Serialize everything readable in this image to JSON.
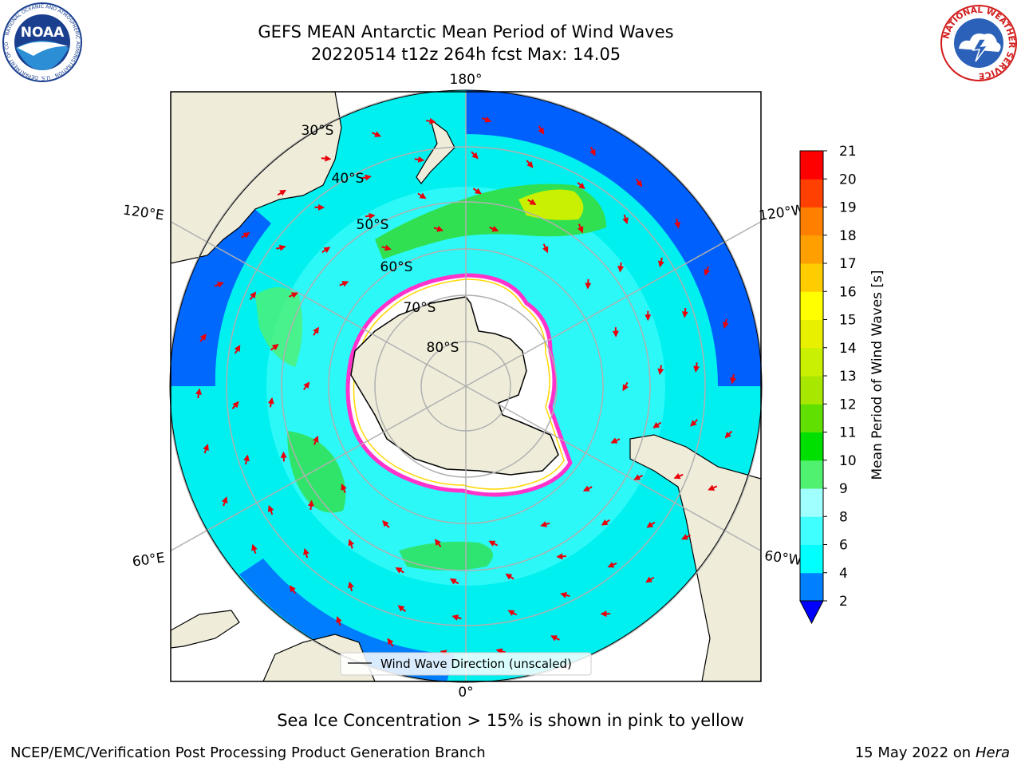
{
  "header": {
    "title_line1": "GEFS MEAN Antarctic Mean Period of Wind Waves",
    "title_line2": "20220514 t12z 264h fcst   Max: 14.05"
  },
  "logos": {
    "left": {
      "name": "noaa-logo",
      "text": "NOAA",
      "ring_text": "NATIONAL OCEANIC AND ATMOSPHERIC ADMINISTRATION · U.S. DEPARTMENT OF COMMERCE"
    },
    "right": {
      "name": "nws-logo",
      "ring_text": "NATIONAL WEATHER SERVICE"
    }
  },
  "map": {
    "projection": "south-polar-stereographic",
    "meridian_labels": {
      "top": "180°",
      "bottom": "0°",
      "upper_left": "120°E",
      "upper_right": "120°W",
      "lower_left": "60°E",
      "lower_right": "60°W"
    },
    "parallel_labels": [
      "30°S",
      "40°S",
      "50°S",
      "60°S",
      "70°S",
      "80°S"
    ],
    "legend_label": "Wind Wave Direction (unscaled)",
    "colors": {
      "land": "#efedda",
      "sea_ice_pink": "#ff33cc",
      "sea_ice_yellow": "#ffd700",
      "arrow": "#e8000b",
      "grid": "#b0b0b0"
    }
  },
  "colorbar": {
    "label": "Mean Period of Wind Waves [s]",
    "ticks": [
      "2",
      "4",
      "6",
      "8",
      "9",
      "10",
      "11",
      "12",
      "13",
      "14",
      "15",
      "16",
      "17",
      "18",
      "19",
      "20",
      "21"
    ],
    "colors": [
      "#0000ff",
      "#0080ff",
      "#00ffff",
      "#40ffff",
      "#a0ffff",
      "#50f070",
      "#00e000",
      "#60e000",
      "#a8e800",
      "#c8f000",
      "#e8f000",
      "#ffff00",
      "#ffcc00",
      "#ffa000",
      "#ff8000",
      "#ff4000",
      "#ff0000"
    ],
    "extend": "min"
  },
  "caption": "Sea Ice Concentration > 15% is shown in pink to yellow",
  "footer": {
    "left": "NCEP/EMC/Verification Post Processing Product Generation Branch",
    "right_date": "15 May 2022 on",
    "right_machine": "Hera"
  }
}
